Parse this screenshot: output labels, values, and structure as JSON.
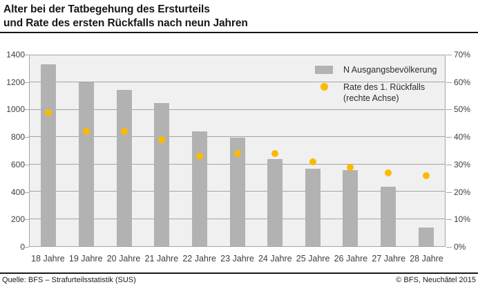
{
  "header": {
    "title_line1": "Alter bei der Tatbegehung des Ersturteils",
    "title_line2": "und Rate des ersten Rückfalls nach neun Jahren"
  },
  "legend": {
    "bar_label": "N Ausgangsbevölkerung",
    "dot_label_line1": "Rate des 1. Rückfalls",
    "dot_label_line2": "(rechte Achse)"
  },
  "footer": {
    "source": "Quelle: BFS – Strafurteilsstatistik (SUS)",
    "copyright": "© BFS, Neuchâtel 2015"
  },
  "colors": {
    "bar": "#b2b2b2",
    "dot": "#fbba00",
    "plot_bg": "#f0f0f0",
    "grid": "#a4a4a4"
  },
  "chart_data": {
    "type": "bar",
    "title": "Alter bei der Tatbegehung des Ersturteils und Rate des ersten Rückfalls nach neun Jahren",
    "categories": [
      "18 Jahre",
      "19 Jahre",
      "20 Jahre",
      "21 Jahre",
      "22 Jahre",
      "23 Jahre",
      "24 Jahre",
      "25 Jahre",
      "26 Jahre",
      "27 Jahre",
      "28 Jahre"
    ],
    "series": [
      {
        "name": "N Ausgangsbevölkerung",
        "type": "bar",
        "axis": "left",
        "values": [
          1335,
          1200,
          1145,
          1050,
          840,
          795,
          640,
          570,
          560,
          435,
          135
        ]
      },
      {
        "name": "Rate des 1. Rückfalls (rechte Achse)",
        "type": "scatter",
        "axis": "right",
        "unit": "%",
        "values": [
          49,
          42,
          42,
          39,
          33,
          34,
          34,
          31,
          29,
          27,
          26
        ]
      }
    ],
    "left_axis": {
      "min": 0,
      "max": 1400,
      "tick_labels": [
        "0",
        "200",
        "400",
        "600",
        "800",
        "1000",
        "1200",
        "1400"
      ]
    },
    "right_axis": {
      "min": 0,
      "max": 70,
      "tick_labels": [
        "0%",
        "10%",
        "20%",
        "30%",
        "40%",
        "50%",
        "60%",
        "70%"
      ]
    },
    "grid": true,
    "legend_position": "inside-top-right"
  }
}
